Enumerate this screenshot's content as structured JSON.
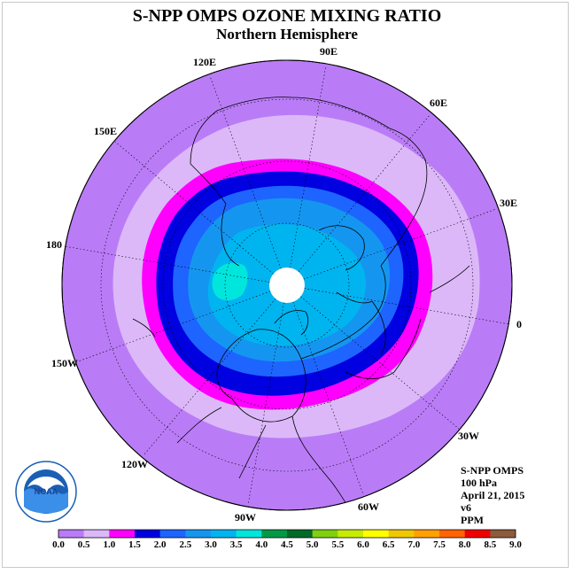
{
  "title": "S-NPP OMPS OZONE MIXING RATIO",
  "subtitle": "Northern Hemisphere",
  "longitude_labels": [
    {
      "text": "90E",
      "lon": 90
    },
    {
      "text": "60E",
      "lon": 60
    },
    {
      "text": "30E",
      "lon": 30
    },
    {
      "text": "0",
      "lon": 0
    },
    {
      "text": "30W",
      "lon": -30
    },
    {
      "text": "60W",
      "lon": -60
    },
    {
      "text": "90W",
      "lon": -90
    },
    {
      "text": "120W",
      "lon": -120
    },
    {
      "text": "150W",
      "lon": -150
    },
    {
      "text": "180",
      "lon": 180
    },
    {
      "text": "150E",
      "lon": 150
    },
    {
      "text": "120E",
      "lon": 120
    }
  ],
  "info": {
    "instrument": "S-NPP OMPS",
    "level": "100 hPa",
    "date": "April 21, 2015",
    "version": "v6",
    "units": "PPM"
  },
  "logo": {
    "text": "NOAA"
  },
  "colorbar": {
    "ticks": [
      "0.0",
      "0.5",
      "1.0",
      "1.5",
      "2.0",
      "2.5",
      "3.0",
      "3.5",
      "4.0",
      "4.5",
      "5.0",
      "5.5",
      "6.0",
      "6.5",
      "7.0",
      "7.5",
      "8.0",
      "8.5",
      "9.0"
    ],
    "colors": [
      "#b97cf6",
      "#dcb8f8",
      "#ff00ff",
      "#0000e0",
      "#1e64ff",
      "#1496f0",
      "#00b4f0",
      "#00e6dc",
      "#009a46",
      "#006a28",
      "#80d010",
      "#c8ec00",
      "#ffff00",
      "#f0c800",
      "#ffa000",
      "#ff6400",
      "#f00000",
      "#8c5a3c"
    ]
  },
  "chart_data": {
    "type": "heatmap",
    "projection": "north polar stereographic",
    "variable": "ozone mixing ratio",
    "level": "100 hPa",
    "units": "PPM",
    "range": [
      0.0,
      9.0
    ],
    "contour_bands_outer_to_inner": [
      "0.0-0.5",
      "0.5-1.0",
      "1.0-1.5",
      "1.5-2.0",
      "2.0-2.5",
      "2.5-3.0",
      "3.0-3.5",
      "3.5-4.0"
    ],
    "pole_no_data": true
  }
}
